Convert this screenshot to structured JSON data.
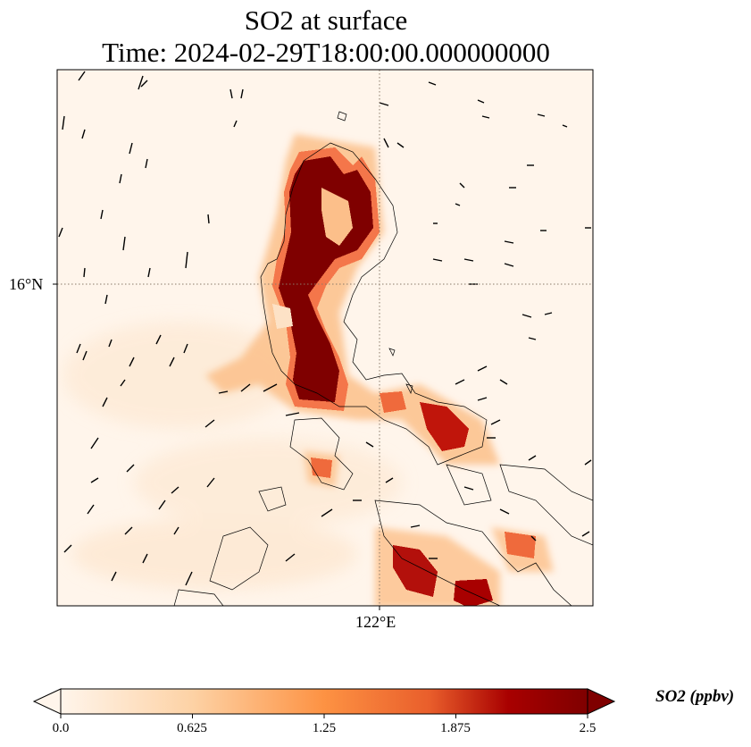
{
  "title": {
    "line1": "SO2 at surface",
    "line2": "Time: 2024-02-29T18:00:00.000000000"
  },
  "axes": {
    "lat_tick": "16°N",
    "lon_tick": "122°E",
    "gridline_style": "dotted"
  },
  "colorbar": {
    "label": "SO2 (ppbv)",
    "ticks": [
      "0.0",
      "0.625",
      "1.25",
      "1.875",
      "2.5"
    ],
    "min": 0.0,
    "max": 2.5,
    "extend": "both",
    "colormap_stops": [
      "#fff5eb",
      "#fdd2a5",
      "#fd9243",
      "#e95e2b",
      "#a80000",
      "#7f0000"
    ]
  },
  "colors": {
    "land_outline": "#000000",
    "wind_arrow": "#000000",
    "background": "#fff5eb"
  }
}
